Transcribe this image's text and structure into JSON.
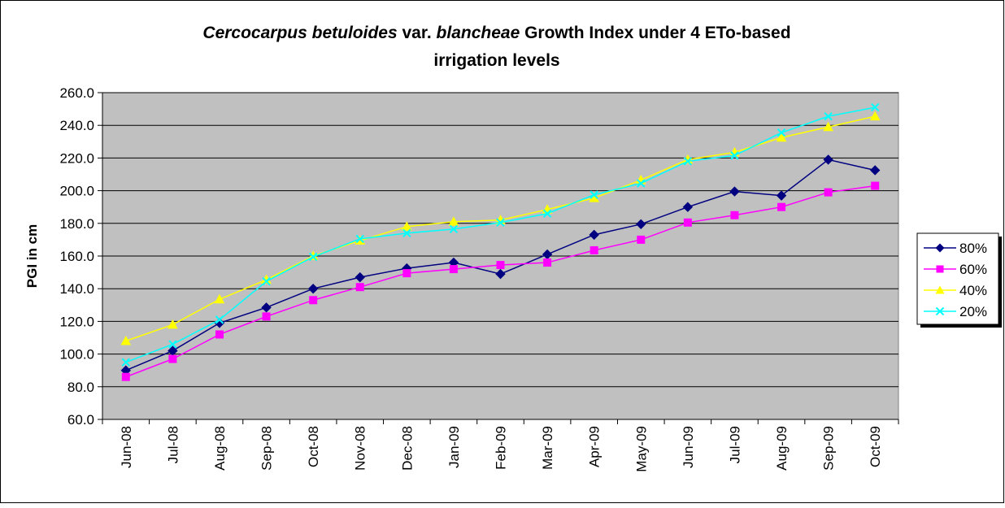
{
  "chart_data": {
    "type": "line",
    "title": [
      [
        {
          "text": "Cercocarpus betuloides",
          "italic": true
        },
        {
          "text": " var. ",
          "italic": false
        },
        {
          "text": "blancheae",
          "italic": true
        },
        {
          "text": " Growth Index under 4 ETo-based",
          "italic": false
        }
      ],
      [
        {
          "text": "irrigation levels",
          "italic": false
        }
      ]
    ],
    "y_label": "PGI in cm",
    "categories": [
      "Jun-08",
      "Jul-08",
      "Aug-08",
      "Sep-08",
      "Oct-08",
      "Nov-08",
      "Dec-08",
      "Jan-09",
      "Feb-09",
      "Mar-09",
      "Apr-09",
      "May-09",
      "Jun-09",
      "Jul-09",
      "Aug-09",
      "Sep-09",
      "Oct-09"
    ],
    "series": [
      {
        "name": "80%",
        "color": "#000080",
        "marker": "diamond",
        "values": [
          90,
          102,
          119,
          128.5,
          140,
          147,
          152.5,
          156,
          149,
          161,
          173,
          179.5,
          190,
          199.5,
          197,
          219,
          212.5
        ]
      },
      {
        "name": "60%",
        "color": "#ff00ff",
        "marker": "square",
        "values": [
          86,
          97,
          112,
          123,
          133,
          141,
          149.5,
          152,
          154.5,
          156,
          163.5,
          170,
          180.5,
          185,
          190,
          199,
          203
        ]
      },
      {
        "name": "40%",
        "color": "#ffff00",
        "marker": "triangle",
        "values": [
          108,
          118,
          133.5,
          145.5,
          160,
          169.5,
          178,
          181,
          182,
          188.5,
          195.5,
          206.5,
          219,
          223.5,
          232.5,
          239,
          245.5
        ]
      },
      {
        "name": "20%",
        "color": "#00ffff",
        "marker": "x",
        "values": [
          95,
          106,
          121,
          144.5,
          159.5,
          170.5,
          174,
          176.5,
          180.5,
          186,
          197.5,
          204.5,
          218,
          221.5,
          235.5,
          245.5,
          251
        ]
      }
    ],
    "ylim": [
      60,
      260
    ],
    "yticks": [
      {
        "value": 60,
        "label": "60.0"
      },
      {
        "value": 80,
        "label": "80.0"
      },
      {
        "value": 100,
        "label": "100.0"
      },
      {
        "value": 120,
        "label": "120.0"
      },
      {
        "value": 140,
        "label": "140.0"
      },
      {
        "value": 160,
        "label": "160.0"
      },
      {
        "value": 180,
        "label": "180.0"
      },
      {
        "value": 200,
        "label": "200.0"
      },
      {
        "value": 220,
        "label": "220.0"
      },
      {
        "value": 240,
        "label": "240.0"
      },
      {
        "value": 260,
        "label": "260.0"
      }
    ],
    "grid": true,
    "plot_background": "#c0c0c0",
    "legend": "right"
  }
}
